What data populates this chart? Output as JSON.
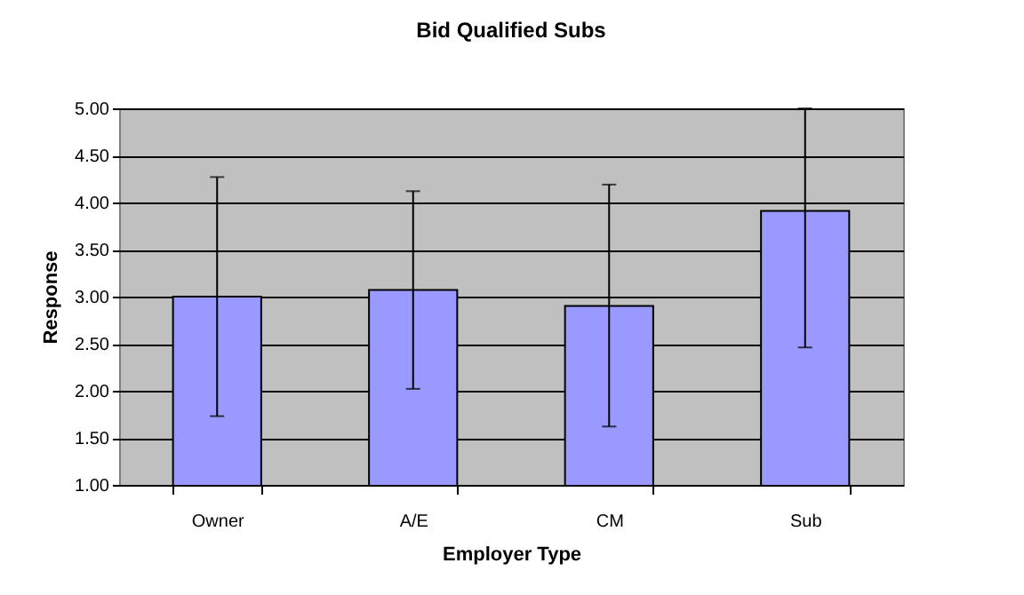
{
  "chart_data": {
    "type": "bar",
    "title": "Bid Qualified Subs",
    "xlabel": "Employer Type",
    "ylabel": "Response",
    "categories": [
      "Owner",
      "A/E",
      "CM",
      "Sub"
    ],
    "values": [
      3.0,
      3.07,
      2.9,
      3.91
    ],
    "errors": [
      [
        1.73,
        4.27
      ],
      [
        2.02,
        4.12
      ],
      [
        1.62,
        4.19
      ],
      [
        2.46,
        5.0
      ]
    ],
    "color": "#9999ff",
    "ylim": [
      1,
      5
    ],
    "yticks": [
      {
        "value": 1,
        "label": "1.00"
      },
      {
        "value": 1.5,
        "label": "1.50"
      },
      {
        "value": 2,
        "label": "2.00"
      },
      {
        "value": 2.5,
        "label": "2.50"
      },
      {
        "value": 3,
        "label": "3.00"
      },
      {
        "value": 3.5,
        "label": "3.50"
      },
      {
        "value": 4,
        "label": "4.00"
      },
      {
        "value": 4.5,
        "label": "4.50"
      },
      {
        "value": 5,
        "label": "5.00"
      }
    ],
    "grid": "y"
  }
}
